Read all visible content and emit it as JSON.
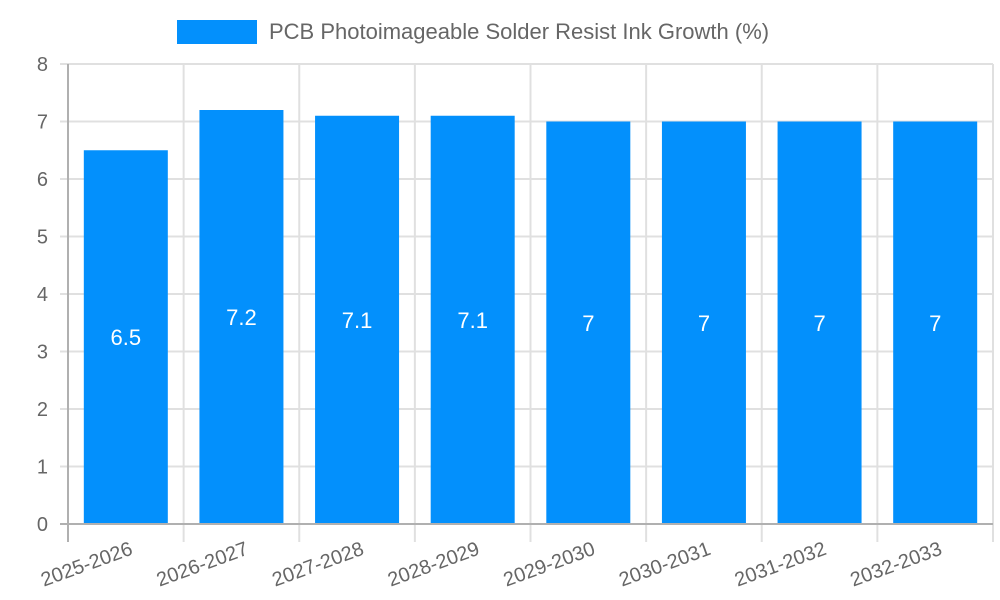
{
  "legend": {
    "label": "PCB Photoimageable Solder Resist Ink Growth (%)",
    "color": "#0390FC"
  },
  "chart_data": {
    "type": "bar",
    "title": "",
    "xlabel": "",
    "ylabel": "",
    "categories": [
      "2025-2026",
      "2026-2027",
      "2027-2028",
      "2028-2029",
      "2029-2030",
      "2030-2031",
      "2031-2032",
      "2032-2033"
    ],
    "series": [
      {
        "name": "PCB Photoimageable Solder Resist Ink Growth (%)",
        "values": [
          6.5,
          7.2,
          7.1,
          7.1,
          7,
          7,
          7,
          7
        ],
        "color": "#0390FC"
      }
    ],
    "data_labels": [
      "6.5",
      "7.2",
      "7.1",
      "7.1",
      "7",
      "7",
      "7",
      "7"
    ],
    "ylim": [
      0,
      8
    ],
    "yticks": [
      0,
      1,
      2,
      3,
      4,
      5,
      6,
      7,
      8
    ],
    "grid": true,
    "legend_position": "top"
  }
}
